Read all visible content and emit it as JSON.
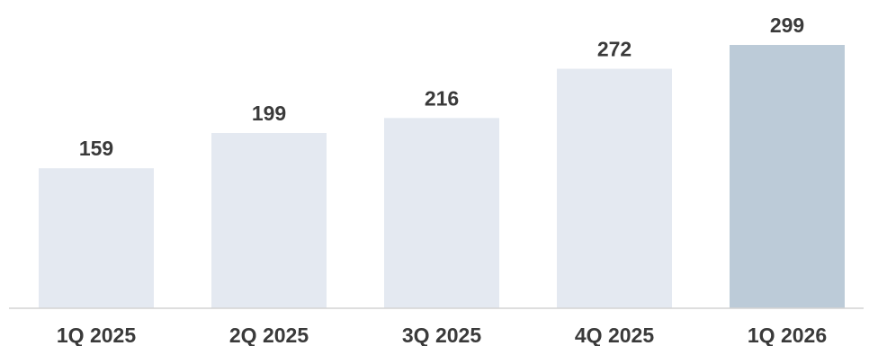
{
  "chart_data": {
    "type": "bar",
    "categories": [
      "1Q 2025",
      "2Q 2025",
      "3Q 2025",
      "4Q 2025",
      "1Q 2026"
    ],
    "values": [
      159,
      199,
      216,
      272,
      299
    ],
    "data_labels": [
      "159",
      "199",
      "216",
      "272",
      "299"
    ],
    "title": "",
    "xlabel": "",
    "ylabel": "",
    "ylim": [
      0,
      299
    ],
    "grid": false,
    "legend": "none",
    "colors": {
      "bar": "#e4e9f1",
      "highlight_bar": "#bccbd8",
      "axis": "#d3d3d3",
      "text": "#3a3a3a"
    },
    "highlight_index": 4
  }
}
